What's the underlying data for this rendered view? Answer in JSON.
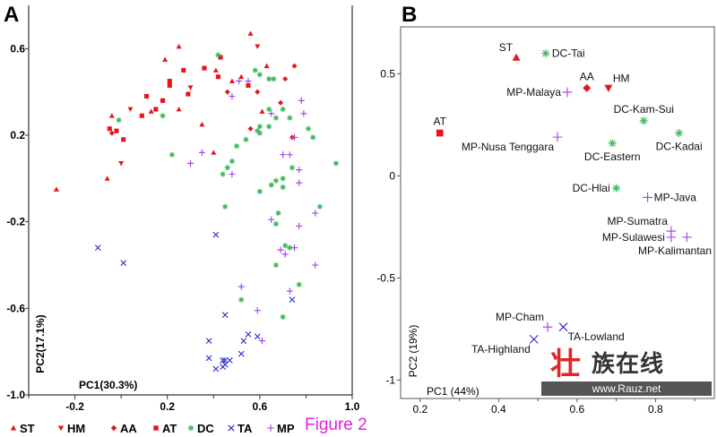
{
  "figure_caption": "Figure 2",
  "watermark": {
    "title_first": "壮",
    "title_rest": "族在线",
    "url": "www.Rauz.net"
  },
  "colors": {
    "ST": "#e8141c",
    "HM": "#e8141c",
    "AA": "#e8141c",
    "AT": "#e8141c",
    "DC": "#3cb85a",
    "TA": "#2b2bc8",
    "MP": "#9b3fe8"
  },
  "legend": [
    {
      "label": "ST",
      "marker": "triangle-up"
    },
    {
      "label": "HM",
      "marker": "triangle-down"
    },
    {
      "label": "AA",
      "marker": "diamond"
    },
    {
      "label": "AT",
      "marker": "square"
    },
    {
      "label": "DC",
      "marker": "asterisk"
    },
    {
      "label": "TA",
      "marker": "x"
    },
    {
      "label": "MP",
      "marker": "plus"
    }
  ],
  "chart_data": [
    {
      "panel": "A",
      "type": "scatter",
      "xlabel": "PC1(30.3%)",
      "ylabel": "PC2(17.1%)",
      "xlim": [
        -0.4,
        1.0
      ],
      "ylim": [
        -1.0,
        0.8
      ],
      "xticks": [
        -0.2,
        0.2,
        0.6,
        1.0
      ],
      "xtick_labels": [
        "-0.2",
        "0.2",
        "0.6",
        "1.0"
      ],
      "xminor": [
        -0.4,
        0.0,
        0.4,
        0.8
      ],
      "yticks": [
        0.6,
        0.2,
        -0.2,
        -0.6,
        -1.0
      ],
      "ytick_labels": [
        "0.6",
        "0.2",
        "-0.2",
        "-0.6",
        "-1.0"
      ],
      "legend_placement": "bottom",
      "series": [
        {
          "name": "ST",
          "marker": "triangle-up",
          "points": [
            [
              -0.28,
              -0.05
            ],
            [
              -0.06,
              0.0
            ],
            [
              -0.04,
              0.29
            ],
            [
              0.13,
              0.31
            ],
            [
              0.25,
              0.32
            ],
            [
              0.19,
              0.55
            ],
            [
              0.25,
              0.61
            ],
            [
              0.56,
              0.67
            ],
            [
              0.63,
              0.52
            ],
            [
              0.41,
              0.5
            ],
            [
              0.52,
              0.47
            ],
            [
              0.48,
              0.45
            ],
            [
              0.35,
              0.25
            ],
            [
              0.61,
              0.31
            ],
            [
              0.4,
              0.12
            ]
          ]
        },
        {
          "name": "HM",
          "marker": "triangle-down",
          "points": [
            [
              0.04,
              0.32
            ],
            [
              0.0,
              0.07
            ],
            [
              0.59,
              0.61
            ],
            [
              0.3,
              0.42
            ]
          ]
        },
        {
          "name": "AA",
          "marker": "diamond",
          "points": [
            [
              -0.04,
              0.21
            ],
            [
              0.18,
              0.36
            ],
            [
              0.75,
              0.52
            ],
            [
              0.71,
              0.46
            ],
            [
              0.46,
              0.4
            ],
            [
              0.59,
              0.4
            ],
            [
              0.69,
              0.35
            ],
            [
              0.56,
              0.23
            ],
            [
              0.74,
              0.19
            ]
          ]
        },
        {
          "name": "AT",
          "marker": "square",
          "points": [
            [
              -0.05,
              0.23
            ],
            [
              -0.02,
              0.22
            ],
            [
              0.01,
              0.18
            ],
            [
              0.09,
              0.29
            ],
            [
              0.11,
              0.38
            ],
            [
              0.15,
              0.32
            ],
            [
              0.21,
              0.45
            ],
            [
              0.21,
              0.43
            ],
            [
              0.27,
              0.5
            ],
            [
              0.29,
              0.39
            ],
            [
              0.18,
              0.36
            ],
            [
              0.43,
              0.56
            ],
            [
              0.36,
              0.51
            ],
            [
              0.42,
              0.47
            ],
            [
              0.55,
              0.43
            ]
          ]
        },
        {
          "name": "DC",
          "marker": "asterisk",
          "points": [
            [
              -0.01,
              0.27
            ],
            [
              0.18,
              0.29
            ],
            [
              0.22,
              0.11
            ],
            [
              0.42,
              0.57
            ],
            [
              0.58,
              0.5
            ],
            [
              0.6,
              0.48
            ],
            [
              0.64,
              0.46
            ],
            [
              0.66,
              0.46
            ],
            [
              0.64,
              0.32
            ],
            [
              0.7,
              0.32
            ],
            [
              0.67,
              0.28
            ],
            [
              0.73,
              0.28
            ],
            [
              0.6,
              0.24
            ],
            [
              0.64,
              0.24
            ],
            [
              0.59,
              0.22
            ],
            [
              0.6,
              0.21
            ],
            [
              0.81,
              0.23
            ],
            [
              0.83,
              0.19
            ],
            [
              0.54,
              0.18
            ],
            [
              0.5,
              0.15
            ],
            [
              0.48,
              0.08
            ],
            [
              0.46,
              0.05
            ],
            [
              0.44,
              0.02
            ],
            [
              0.74,
              0.05
            ],
            [
              0.7,
              0.0
            ],
            [
              0.67,
              -0.01
            ],
            [
              0.65,
              -0.03
            ],
            [
              0.7,
              -0.04
            ],
            [
              0.6,
              -0.06
            ],
            [
              0.45,
              -0.13
            ],
            [
              0.68,
              -0.16
            ],
            [
              0.67,
              -0.21
            ],
            [
              0.86,
              -0.13
            ],
            [
              0.71,
              -0.31
            ],
            [
              0.73,
              -0.32
            ],
            [
              0.67,
              -0.4
            ],
            [
              0.77,
              -0.49
            ],
            [
              0.52,
              -0.56
            ],
            [
              0.7,
              -0.64
            ],
            [
              0.93,
              0.07
            ]
          ]
        },
        {
          "name": "TA",
          "marker": "x",
          "points": [
            [
              -0.1,
              -0.32
            ],
            [
              0.01,
              -0.39
            ],
            [
              0.41,
              -0.26
            ],
            [
              0.74,
              -0.56
            ],
            [
              0.45,
              -0.63
            ],
            [
              0.55,
              -0.72
            ],
            [
              0.59,
              -0.73
            ],
            [
              0.53,
              -0.75
            ],
            [
              0.38,
              -0.75
            ],
            [
              0.52,
              -0.81
            ],
            [
              0.38,
              -0.83
            ],
            [
              0.44,
              -0.84
            ],
            [
              0.45,
              -0.84
            ],
            [
              0.47,
              -0.84
            ],
            [
              0.45,
              -0.86
            ],
            [
              0.44,
              -0.87
            ],
            [
              0.41,
              -0.88
            ]
          ]
        },
        {
          "name": "MP",
          "marker": "plus",
          "points": [
            [
              0.55,
              0.45
            ],
            [
              0.51,
              0.45
            ],
            [
              0.48,
              0.38
            ],
            [
              0.78,
              0.36
            ],
            [
              0.79,
              0.3
            ],
            [
              0.65,
              0.3
            ],
            [
              0.75,
              0.19
            ],
            [
              0.7,
              0.11
            ],
            [
              0.73,
              0.11
            ],
            [
              0.35,
              0.12
            ],
            [
              0.3,
              0.07
            ],
            [
              0.48,
              0.02
            ],
            [
              0.77,
              0.04
            ],
            [
              0.77,
              -0.02
            ],
            [
              0.84,
              -0.16
            ],
            [
              0.65,
              -0.19
            ],
            [
              0.77,
              -0.22
            ],
            [
              0.69,
              -0.33
            ],
            [
              0.71,
              -0.35
            ],
            [
              0.75,
              -0.32
            ],
            [
              0.84,
              -0.4
            ],
            [
              0.52,
              -0.5
            ],
            [
              0.73,
              -0.52
            ],
            [
              0.59,
              -0.61
            ],
            [
              0.61,
              -0.75
            ]
          ]
        }
      ]
    },
    {
      "panel": "B",
      "type": "scatter",
      "xlabel": "PC1 (44%)",
      "ylabel": "PC2 (19%)",
      "xlim": [
        0.15,
        0.95
      ],
      "ylim": [
        -1.09,
        0.73
      ],
      "xticks": [
        0.2,
        0.4,
        0.6,
        0.8
      ],
      "xtick_labels": [
        "0.2",
        "0.4",
        "0.6",
        "0.8"
      ],
      "xminor": [
        0.3,
        0.5,
        0.7,
        0.9
      ],
      "yticks": [
        0.5,
        0,
        -0.5,
        -1
      ],
      "ytick_labels": [
        "0.5",
        "0",
        "-0.5",
        "-1"
      ],
      "points": [
        {
          "label": "ST",
          "group": "ST",
          "x": 0.445,
          "y": 0.58,
          "label_side": "above-left"
        },
        {
          "label": "DC-Tai",
          "group": "DC",
          "x": 0.52,
          "y": 0.6,
          "label_side": "right"
        },
        {
          "label": "AA",
          "group": "AA",
          "x": 0.625,
          "y": 0.43,
          "label_side": "above"
        },
        {
          "label": "HM",
          "group": "HM",
          "x": 0.68,
          "y": 0.43,
          "label_side": "above-right"
        },
        {
          "label": "MP-Malaya",
          "group": "MP",
          "x": 0.575,
          "y": 0.41,
          "label_side": "left"
        },
        {
          "label": "AT",
          "group": "AT",
          "x": 0.25,
          "y": 0.21,
          "label_side": "above"
        },
        {
          "label": "MP-Nusa Tenggara",
          "group": "MP",
          "x": 0.55,
          "y": 0.19,
          "label_side": "below-left"
        },
        {
          "label": "DC-Kam-Sui",
          "group": "DC",
          "x": 0.77,
          "y": 0.27,
          "label_side": "above"
        },
        {
          "label": "DC-Kadai",
          "group": "DC",
          "x": 0.86,
          "y": 0.21,
          "label_side": "below"
        },
        {
          "label": "DC-Eastern",
          "group": "DC",
          "x": 0.69,
          "y": 0.16,
          "label_side": "below"
        },
        {
          "label": "DC-Hlai",
          "group": "DC",
          "x": 0.7,
          "y": -0.06,
          "label_side": "left"
        },
        {
          "label": "MP-Java",
          "group": "MP",
          "x": 0.78,
          "y": -0.105,
          "label_side": "right"
        },
        {
          "label": "MP-Sumatra",
          "group": "MP",
          "x": 0.84,
          "y": -0.27,
          "label_side": "above-left"
        },
        {
          "label": "MP-Sulawesi",
          "group": "MP",
          "x": 0.84,
          "y": -0.3,
          "label_side": "left"
        },
        {
          "label": "MP-Kalimantan",
          "group": "MP",
          "x": 0.88,
          "y": -0.3,
          "label_side": "below"
        },
        {
          "label": "MP-Cham",
          "group": "MP",
          "x": 0.525,
          "y": -0.74,
          "label_side": "above-left"
        },
        {
          "label": "TA-Lowland",
          "group": "TA",
          "x": 0.565,
          "y": -0.74,
          "label_side": "below-right"
        },
        {
          "label": "TA-Highland",
          "group": "TA",
          "x": 0.49,
          "y": -0.8,
          "label_side": "below-left"
        }
      ]
    }
  ],
  "panel_letters": [
    "A",
    "B"
  ]
}
